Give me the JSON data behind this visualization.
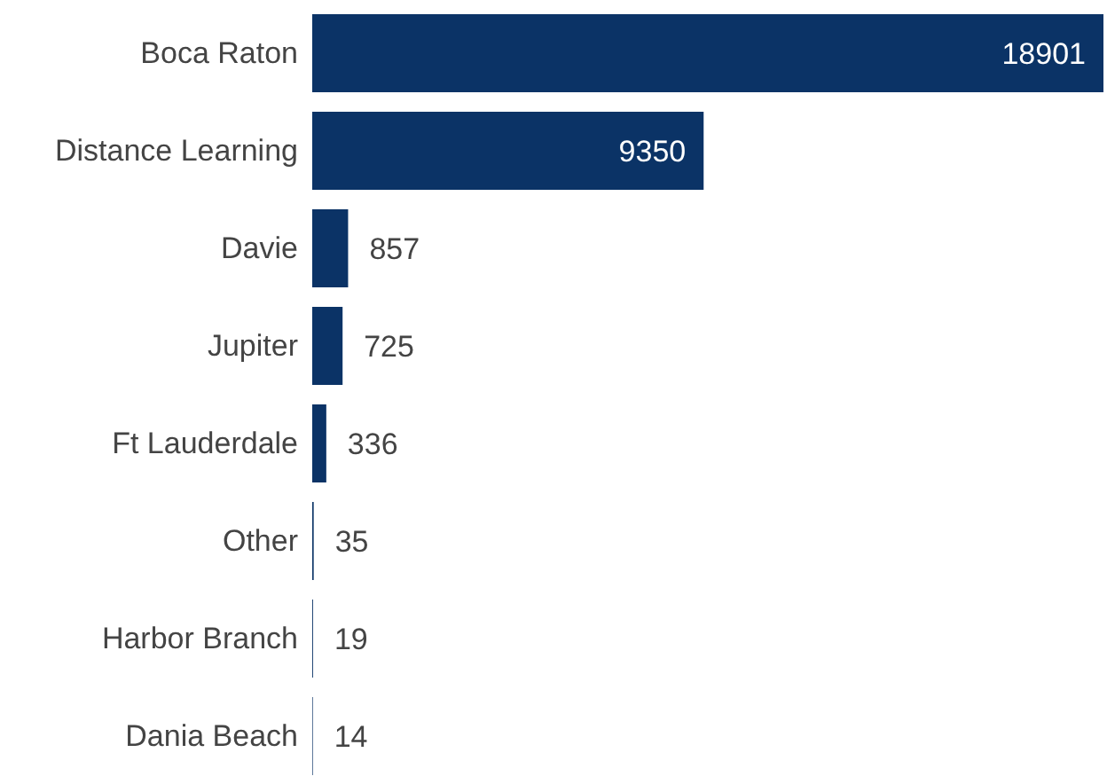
{
  "chart_data": {
    "type": "bar",
    "orientation": "horizontal",
    "categories": [
      "Boca Raton",
      "Distance Learning",
      "Davie",
      "Jupiter",
      "Ft Lauderdale",
      "Other",
      "Harbor Branch",
      "Dania Beach"
    ],
    "values": [
      18901,
      9350,
      857,
      725,
      336,
      35,
      19,
      14
    ],
    "color": "#0b3366",
    "data_labels": true
  }
}
